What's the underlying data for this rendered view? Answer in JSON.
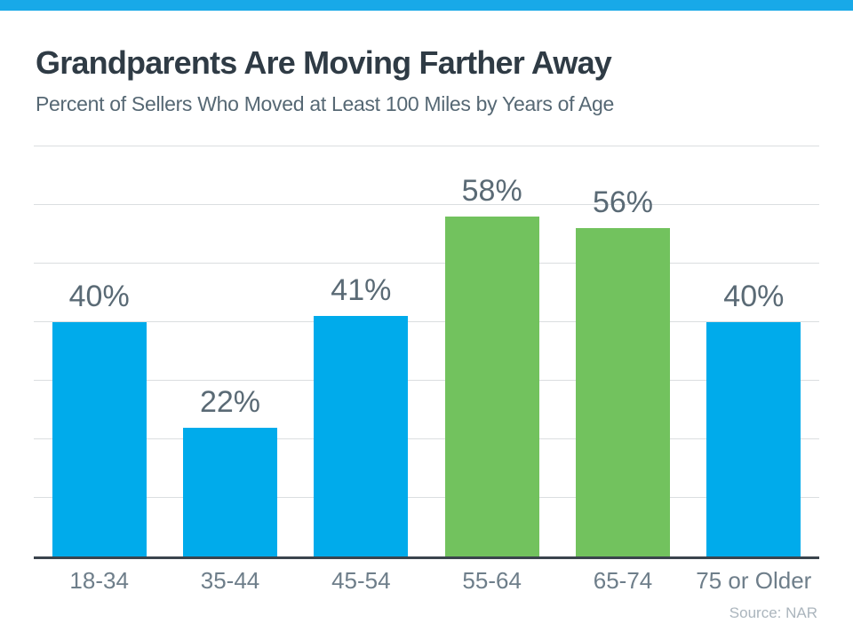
{
  "header": {
    "title": "Grandparents Are Moving Farther Away",
    "subtitle": "Percent of Sellers Who Moved at Least 100 Miles by Years of Age"
  },
  "footer": {
    "source": "Source: NAR"
  },
  "chart_data": {
    "type": "bar",
    "title": "Grandparents Are Moving Farther Away",
    "subtitle": "Percent of Sellers Who Moved at Least 100 Miles by Years of Age",
    "categories": [
      "18-34",
      "35-44",
      "45-54",
      "55-64",
      "65-74",
      "75 or Older"
    ],
    "values": [
      40,
      22,
      41,
      58,
      56,
      40
    ],
    "data_labels": [
      "40%",
      "22%",
      "41%",
      "58%",
      "56%",
      "40%"
    ],
    "bar_colors": [
      "#00abeb",
      "#00abeb",
      "#00abeb",
      "#72c25e",
      "#72c25e",
      "#00abeb"
    ],
    "ylim": [
      0,
      70
    ],
    "grid_interval": 10,
    "grid": true,
    "legend": false,
    "xlabel": "",
    "ylabel": "",
    "source": "Source: NAR",
    "colors": {
      "top_bar": "#18a9e8",
      "blue_bar": "#00abeb",
      "green_bar": "#72c25e",
      "gridline": "#dbdee0",
      "axis": "#3a444d",
      "title": "#2f3b45",
      "subtitle": "#566874",
      "value_label": "#5a6a75",
      "category_label": "#6e7e8a",
      "source": "#abb5bd"
    }
  }
}
